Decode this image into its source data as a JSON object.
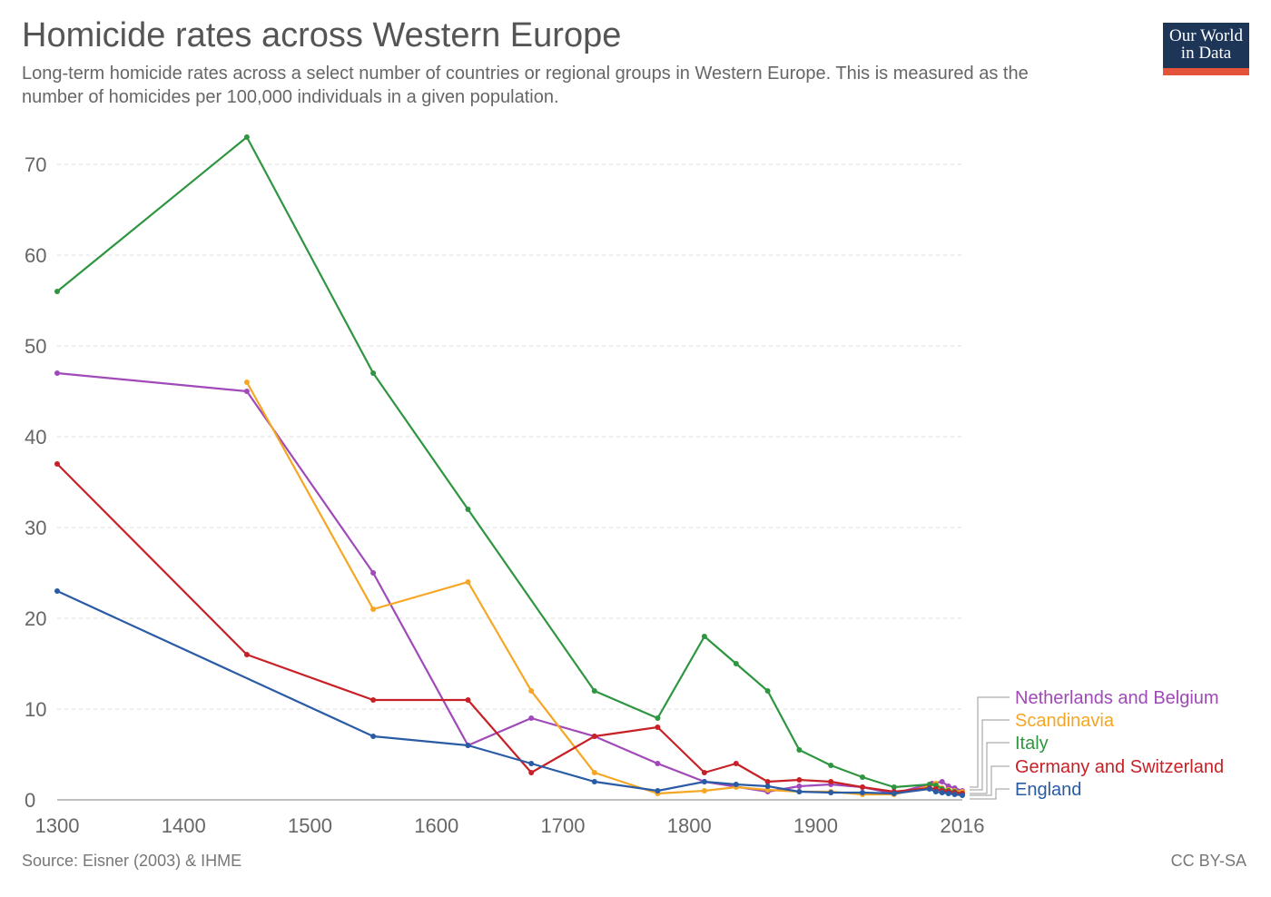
{
  "header": {
    "title": "Homicide rates across Western Europe",
    "subtitle": "Long-term homicide rates across a select number of countries or regional groups in Western Europe. This is measured as the number of homicides per 100,000 individuals in a given population."
  },
  "logo": {
    "line1": "Our World",
    "line2": "in Data"
  },
  "footer": {
    "source": "Source: Eisner (2003) & IHME",
    "license": "CC BY-SA"
  },
  "colors": {
    "accent_logo_bg": "#1d3557",
    "accent_logo_bar": "#e4523a"
  },
  "chart_data": {
    "type": "line",
    "title": "Homicide rates across Western Europe",
    "xlabel": "",
    "ylabel": "",
    "xlim": [
      1300,
      2016
    ],
    "ylim": [
      0,
      73
    ],
    "x_ticks": [
      1300,
      1400,
      1500,
      1600,
      1700,
      1800,
      1900,
      2016
    ],
    "y_ticks": [
      0,
      10,
      20,
      30,
      40,
      50,
      60,
      70
    ],
    "grid": "horizontal dashed",
    "legend": "right, inline labels",
    "series": [
      {
        "name": "Netherlands and Belgium",
        "color": "#a049b8",
        "points": [
          [
            1300,
            47
          ],
          [
            1450,
            45
          ],
          [
            1550,
            25
          ],
          [
            1625,
            6
          ],
          [
            1675,
            9
          ],
          [
            1725,
            7
          ],
          [
            1775,
            4
          ],
          [
            1812,
            2
          ],
          [
            1862,
            0.9
          ],
          [
            1887,
            1.5
          ],
          [
            1912,
            1.7
          ],
          [
            1937,
            1.4
          ],
          [
            1962,
            0.7
          ],
          [
            1992,
            1.8
          ],
          [
            2000,
            2.0
          ],
          [
            2005,
            1.5
          ],
          [
            2010,
            1.3
          ],
          [
            2016,
            1.0
          ]
        ]
      },
      {
        "name": "Scandinavia",
        "color": "#f5a623",
        "points": [
          [
            1450,
            46
          ],
          [
            1550,
            21
          ],
          [
            1625,
            24
          ],
          [
            1675,
            12
          ],
          [
            1725,
            3
          ],
          [
            1775,
            0.7
          ],
          [
            1812,
            1.0
          ],
          [
            1837,
            1.4
          ],
          [
            1862,
            1.1
          ],
          [
            1887,
            0.9
          ],
          [
            1912,
            0.9
          ],
          [
            1937,
            0.6
          ],
          [
            1962,
            0.6
          ],
          [
            1990,
            1.5
          ],
          [
            1995,
            1.8
          ],
          [
            2000,
            1.3
          ],
          [
            2005,
            1.1
          ],
          [
            2010,
            1.0
          ],
          [
            2016,
            0.9
          ]
        ]
      },
      {
        "name": "Italy",
        "color": "#2e9540",
        "points": [
          [
            1300,
            56
          ],
          [
            1450,
            73
          ],
          [
            1550,
            47
          ],
          [
            1625,
            32
          ],
          [
            1725,
            12
          ],
          [
            1775,
            9
          ],
          [
            1812,
            18
          ],
          [
            1837,
            15
          ],
          [
            1862,
            12
          ],
          [
            1887,
            5.5
          ],
          [
            1912,
            3.8
          ],
          [
            1937,
            2.5
          ],
          [
            1962,
            1.4
          ],
          [
            1990,
            1.7
          ],
          [
            1995,
            1.6
          ],
          [
            2000,
            1.2
          ],
          [
            2005,
            1.0
          ],
          [
            2010,
            0.9
          ],
          [
            2016,
            0.7
          ]
        ]
      },
      {
        "name": "Germany and Switzerland",
        "color": "#c72127",
        "points": [
          [
            1300,
            37
          ],
          [
            1450,
            16
          ],
          [
            1550,
            11
          ],
          [
            1625,
            11
          ],
          [
            1675,
            3
          ],
          [
            1725,
            7
          ],
          [
            1775,
            8
          ],
          [
            1812,
            3
          ],
          [
            1837,
            4
          ],
          [
            1862,
            2
          ],
          [
            1887,
            2.2
          ],
          [
            1912,
            2
          ],
          [
            1937,
            1.4
          ],
          [
            1962,
            0.9
          ],
          [
            1990,
            1.3
          ],
          [
            1995,
            1.2
          ],
          [
            2000,
            1.0
          ],
          [
            2005,
            0.9
          ],
          [
            2010,
            0.8
          ],
          [
            2016,
            0.7
          ]
        ]
      },
      {
        "name": "England",
        "color": "#2a5ba5",
        "points": [
          [
            1300,
            23
          ],
          [
            1550,
            7
          ],
          [
            1625,
            6
          ],
          [
            1675,
            4
          ],
          [
            1725,
            2
          ],
          [
            1775,
            1
          ],
          [
            1812,
            2
          ],
          [
            1837,
            1.7
          ],
          [
            1862,
            1.5
          ],
          [
            1887,
            0.9
          ],
          [
            1912,
            0.8
          ],
          [
            1937,
            0.8
          ],
          [
            1962,
            0.7
          ],
          [
            1990,
            1.2
          ],
          [
            1995,
            0.9
          ],
          [
            2000,
            0.8
          ],
          [
            2005,
            0.7
          ],
          [
            2010,
            0.6
          ],
          [
            2016,
            0.5
          ]
        ]
      }
    ]
  }
}
